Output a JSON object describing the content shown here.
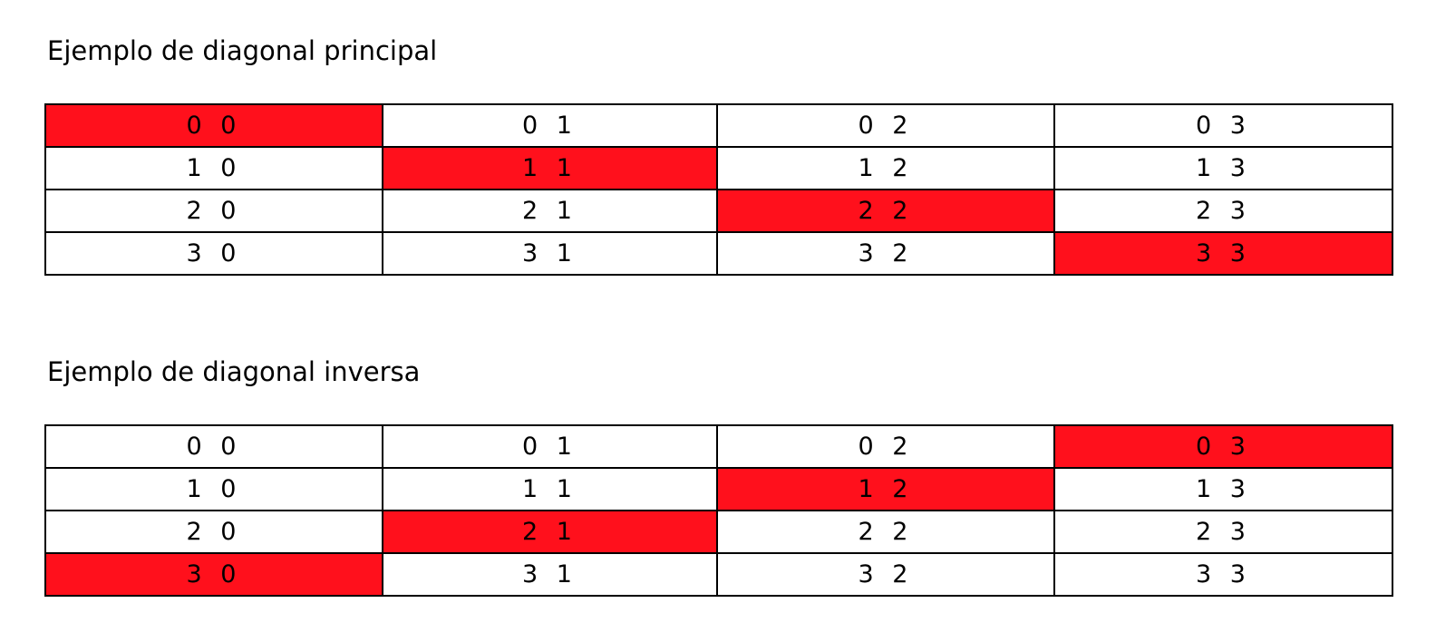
{
  "highlight_color": "#ff101c",
  "sections": [
    {
      "title": "Ejemplo de diagonal principal",
      "rows": [
        [
          "0 0",
          "0 1",
          "0 2",
          "0 3"
        ],
        [
          "1 0",
          "1 1",
          "1 2",
          "1 3"
        ],
        [
          "2 0",
          "2 1",
          "2 2",
          "2 3"
        ],
        [
          "3 0",
          "3 1",
          "3 2",
          "3 3"
        ]
      ],
      "highlighted": [
        [
          0,
          0
        ],
        [
          1,
          1
        ],
        [
          2,
          2
        ],
        [
          3,
          3
        ]
      ]
    },
    {
      "title": "Ejemplo de diagonal inversa",
      "rows": [
        [
          "0 0",
          "0 1",
          "0 2",
          "0 3"
        ],
        [
          "1 0",
          "1 1",
          "1 2",
          "1 3"
        ],
        [
          "2 0",
          "2 1",
          "2 2",
          "2 3"
        ],
        [
          "3 0",
          "3 1",
          "3 2",
          "3 3"
        ]
      ],
      "highlighted": [
        [
          0,
          3
        ],
        [
          1,
          2
        ],
        [
          2,
          1
        ],
        [
          3,
          0
        ]
      ]
    }
  ]
}
